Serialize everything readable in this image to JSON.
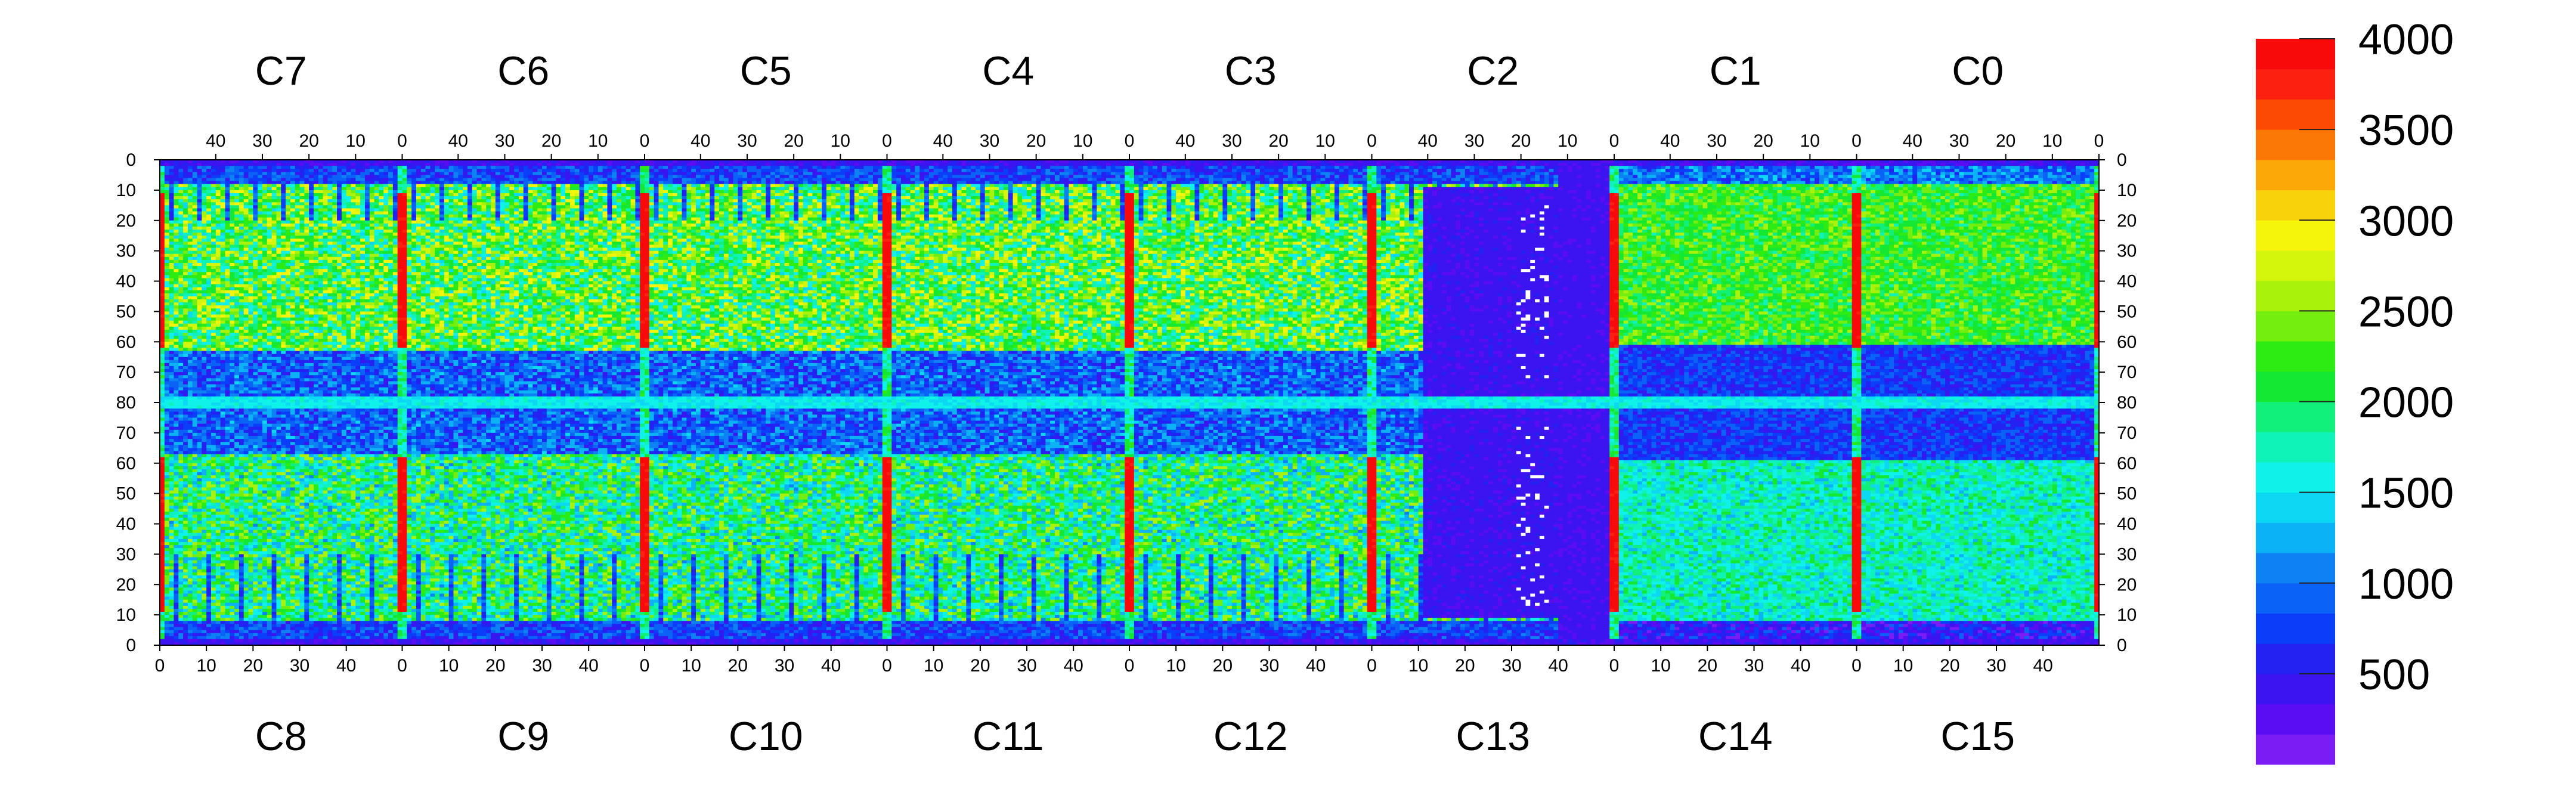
{
  "chart_data": {
    "type": "heatmap",
    "title": "",
    "xlabel": "",
    "ylabel": "",
    "chips_top": [
      "C7",
      "C6",
      "C5",
      "C4",
      "C3",
      "C2",
      "C1",
      "C0"
    ],
    "chips_bottom": [
      "C8",
      "C9",
      "C10",
      "C11",
      "C12",
      "C13",
      "C14",
      "C15"
    ],
    "chip_columns": 52,
    "chip_rows": 80,
    "top_x_ticks": [
      "40",
      "30",
      "20",
      "10",
      "0"
    ],
    "top_x_tick_values": [
      40,
      30,
      20,
      10,
      0
    ],
    "bottom_x_ticks": [
      "0",
      "10",
      "20",
      "30",
      "40"
    ],
    "bottom_x_tick_values": [
      0,
      10,
      20,
      30,
      40
    ],
    "y_ticks": [
      "0",
      "10",
      "20",
      "30",
      "40",
      "50",
      "60",
      "70",
      "80",
      "70",
      "60",
      "50",
      "40",
      "30",
      "20",
      "10",
      "0"
    ],
    "z_range": [
      0,
      4000
    ],
    "colorbar_ticks": [
      "4000",
      "3500",
      "3000",
      "2500",
      "2000",
      "1500",
      "1000",
      "500"
    ],
    "colorbar_tick_values": [
      4000,
      3500,
      3000,
      2500,
      2000,
      1500,
      1000,
      500
    ],
    "palette": [
      "#7c1cf5",
      "#5a0df2",
      "#3b14f0",
      "#2322f2",
      "#0a3ef8",
      "#0a62f6",
      "#0d82f2",
      "#0bb2f6",
      "#0cd8f4",
      "#0ff2ea",
      "#0ff3b8",
      "#11f07a",
      "#14e832",
      "#2dec14",
      "#73ee0f",
      "#a8f20c",
      "#d4f50c",
      "#f5f50c",
      "#f8d20b",
      "#fca806",
      "#fc7806",
      "#fc4a05",
      "#fc2010",
      "#f80a0a"
    ],
    "approx_levels": {
      "background_dead": 250,
      "top_half_typical": 2200,
      "bottom_half_typical": 1900,
      "middle_band_typical": 900,
      "chip_edge_columns": 3800,
      "C13_region": 300,
      "C0_C1_C14_C15_region": 700,
      "chip_seam_row_80": 1400
    },
    "legend_position": "right"
  }
}
